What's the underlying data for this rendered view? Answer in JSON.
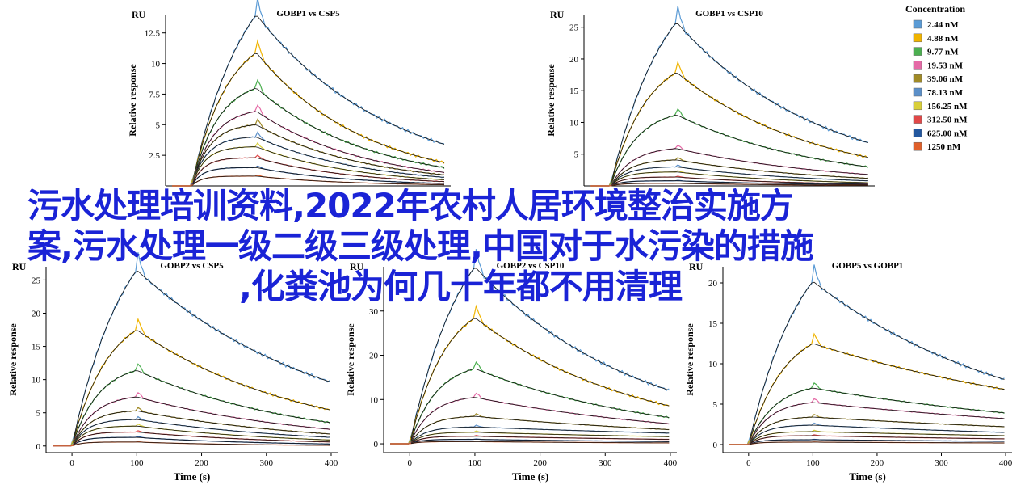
{
  "legend": {
    "title": "Concentration",
    "items": [
      {
        "label": "2.44 nM",
        "color": "#5b9bd5"
      },
      {
        "label": "4.88 nM",
        "color": "#f0b400"
      },
      {
        "label": "9.77 nM",
        "color": "#4caf50"
      },
      {
        "label": "19.53 nM",
        "color": "#e56aa6"
      },
      {
        "label": "39.06 nM",
        "color": "#a08a26"
      },
      {
        "label": "78.13 nM",
        "color": "#5b8fc8"
      },
      {
        "label": "156.25 nM",
        "color": "#d9cf3a"
      },
      {
        "label": "312.50 nM",
        "color": "#e04848"
      },
      {
        "label": "625.00 nM",
        "color": "#23579e"
      },
      {
        "label": "1250 nM",
        "color": "#e0602a"
      }
    ]
  },
  "overlay_title": {
    "line1": "污水处理培训资料,2022年农村人居环境整治实施方",
    "line2": "案,污水处理一级二级三级处理,中国对于水污染的措施",
    "line3": ",化粪池为何几十年都不用清理"
  },
  "chart_data": [
    {
      "type": "line",
      "title": "GOBP1 vs CSP5",
      "unit_label": "RU",
      "xlabel": "",
      "ylabel": "Relative response",
      "xlim": [
        -40,
        400
      ],
      "ylim": [
        0,
        14
      ],
      "xticks": [],
      "yticks": [
        2.5,
        5,
        7.5,
        10,
        12.5
      ],
      "assoc_end": 100,
      "peaks": [
        14.0,
        10.9,
        8.0,
        6.1,
        5.0,
        4.0,
        3.2,
        2.3,
        1.5,
        0.8
      ],
      "ends": [
        3.4,
        1.9,
        1.5,
        1.1,
        0.9,
        0.7,
        0.5,
        0.35,
        0.2,
        0.1
      ]
    },
    {
      "type": "line",
      "title": "GOBP1 vs CSP10",
      "unit_label": "RU",
      "xlabel": "",
      "ylabel": "Relative response",
      "xlim": [
        -40,
        400
      ],
      "ylim": [
        0,
        27
      ],
      "xticks": [],
      "yticks": [
        5,
        10,
        15,
        20,
        25
      ],
      "assoc_end": 100,
      "peaks": [
        25.8,
        17.9,
        11.2,
        5.9,
        4.1,
        3.0,
        2.2,
        1.4,
        0.8,
        0.4
      ],
      "ends": [
        6.8,
        4.5,
        3.0,
        1.8,
        1.2,
        0.8,
        0.5,
        0.3,
        0.2,
        0.1
      ]
    },
    {
      "type": "line",
      "title": "GOBP2 vs CSP5",
      "unit_label": "RU",
      "xlabel": "Time (s)",
      "ylabel": "Relative response",
      "xlim": [
        -40,
        410
      ],
      "ylim": [
        -1,
        27
      ],
      "xticks": [
        0,
        100,
        200,
        300,
        400
      ],
      "yticks": [
        0,
        5,
        10,
        15,
        20,
        25
      ],
      "assoc_end": 100,
      "peaks": [
        26.5,
        17.5,
        11.4,
        7.4,
        5.3,
        4.0,
        3.0,
        2.1,
        1.3,
        0.6
      ],
      "ends": [
        9.6,
        5.4,
        3.5,
        2.5,
        1.8,
        1.3,
        0.9,
        0.6,
        0.3,
        0.1
      ]
    },
    {
      "type": "line",
      "title": "GOBP2 vs CSP10",
      "unit_label": "RU",
      "xlabel": "Time (s)",
      "ylabel": "Relative response",
      "xlim": [
        -40,
        410
      ],
      "ylim": [
        -2,
        40
      ],
      "xticks": [
        0,
        100,
        200,
        300,
        400
      ],
      "yticks": [
        0,
        10,
        20,
        30
      ],
      "assoc_end": 100,
      "peaks": [
        40.0,
        28.5,
        17.0,
        10.5,
        6.2,
        3.8,
        2.6,
        1.7,
        1.0,
        0.5
      ],
      "ends": [
        12.0,
        8.5,
        5.9,
        4.5,
        3.2,
        2.4,
        1.6,
        1.0,
        0.5,
        0.2
      ]
    },
    {
      "type": "line",
      "title": "GOBP5 vs GOBP1",
      "unit_label": "RU",
      "xlabel": "Time (s)",
      "ylabel": "Relative response",
      "xlim": [
        -40,
        410
      ],
      "ylim": [
        -1,
        22
      ],
      "xticks": [
        0,
        100,
        200,
        300,
        400
      ],
      "yticks": [
        0,
        5,
        10,
        15,
        20
      ],
      "assoc_end": 100,
      "peaks": [
        20.2,
        12.5,
        7.0,
        5.2,
        3.4,
        2.4,
        1.6,
        1.1,
        0.6,
        0.3
      ],
      "ends": [
        8.0,
        6.8,
        3.9,
        3.2,
        2.2,
        1.5,
        1.1,
        0.7,
        0.4,
        0.2
      ]
    }
  ]
}
